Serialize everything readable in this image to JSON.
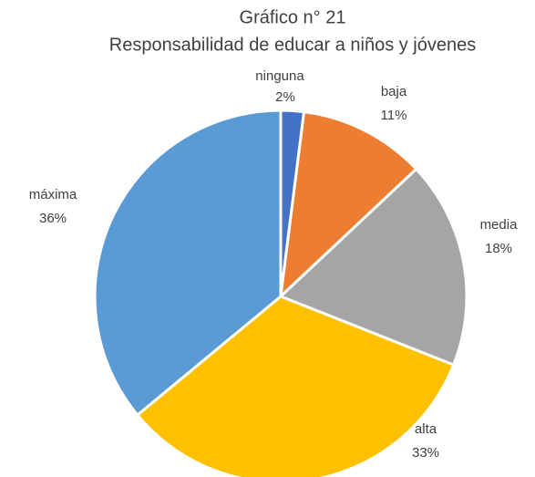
{
  "chart_data": {
    "type": "pie",
    "title": "Gráfico n° 21",
    "subtitle": "Responsabilidad de educar a niños y jóvenes",
    "categories": [
      "ninguna",
      "baja",
      "media",
      "alta",
      "máxima"
    ],
    "values": [
      2,
      11,
      18,
      33,
      36
    ],
    "value_labels": [
      "2%",
      "11%",
      "18%",
      "33%",
      "36%"
    ],
    "colors": [
      "#4472c4",
      "#ed7d31",
      "#a5a5a5",
      "#ffc000",
      "#5b9bd5"
    ]
  }
}
